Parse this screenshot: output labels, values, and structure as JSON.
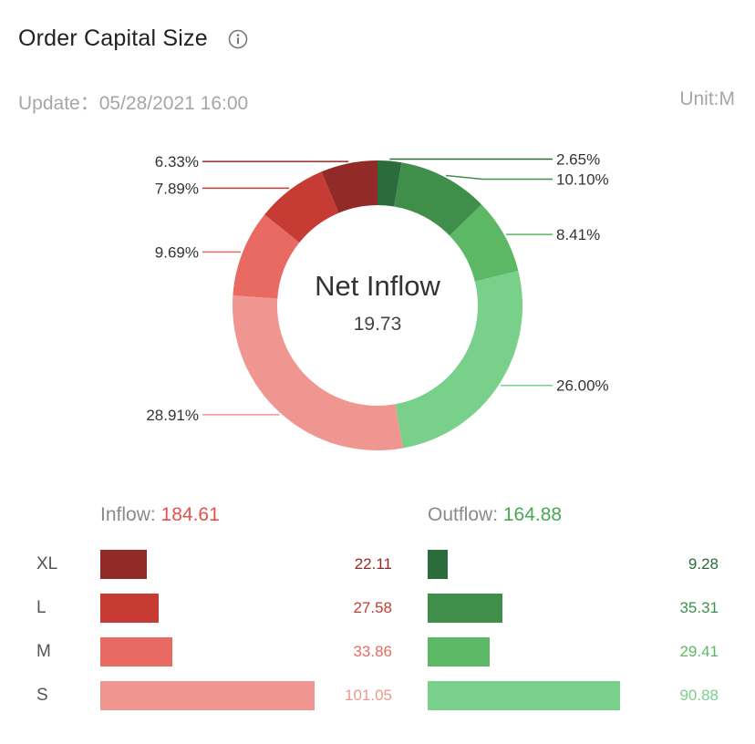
{
  "header": {
    "title": "Order Capital Size",
    "update_label": "Update：",
    "update_value": "05/28/2021 16:00",
    "unit": "Unit:M"
  },
  "center": {
    "label": "Net Inflow",
    "value": "19.73"
  },
  "summary": {
    "inflow_label": "Inflow:",
    "inflow_value": "184.61",
    "outflow_label": "Outflow:",
    "outflow_value": "164.88"
  },
  "colors": {
    "inflow": [
      "#922b27",
      "#c63c34",
      "#e96a63",
      "#f09690"
    ],
    "outflow": [
      "#2c6b3c",
      "#3f8f4a",
      "#5cb865",
      "#79d08a"
    ],
    "inflow_text": "#e0534b",
    "outflow_text": "#47a852"
  },
  "chart_data": [
    {
      "type": "pie",
      "title": "Order Capital Size",
      "slices": [
        {
          "label": "6.33%",
          "value": 6.33,
          "group": "inflow",
          "size": "XL"
        },
        {
          "label": "7.89%",
          "value": 7.89,
          "group": "inflow",
          "size": "L"
        },
        {
          "label": "9.69%",
          "value": 9.69,
          "group": "inflow",
          "size": "M"
        },
        {
          "label": "28.91%",
          "value": 28.91,
          "group": "inflow",
          "size": "S"
        },
        {
          "label": "2.65%",
          "value": 2.65,
          "group": "outflow",
          "size": "XL"
        },
        {
          "label": "10.10%",
          "value": 10.1,
          "group": "outflow",
          "size": "L"
        },
        {
          "label": "8.41%",
          "value": 8.41,
          "group": "outflow",
          "size": "M"
        },
        {
          "label": "26.00%",
          "value": 26.0,
          "group": "outflow",
          "size": "S"
        }
      ]
    },
    {
      "type": "bar",
      "categories": [
        "XL",
        "L",
        "M",
        "S"
      ],
      "series": [
        {
          "name": "Inflow",
          "values": [
            22.11,
            27.58,
            33.86,
            101.05
          ],
          "labels": [
            "22.11",
            "27.58",
            "33.86",
            "101.05"
          ]
        },
        {
          "name": "Outflow",
          "values": [
            9.28,
            35.31,
            29.41,
            90.88
          ],
          "labels": [
            "9.28",
            "35.31",
            "29.41",
            "90.88"
          ]
        }
      ]
    }
  ]
}
